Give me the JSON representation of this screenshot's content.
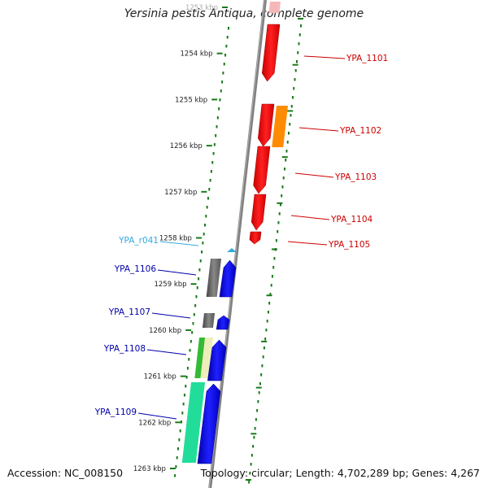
{
  "title": "Yersinia pestis Antiqua, complete genome",
  "footer": {
    "accession": "Accession: NC_008150",
    "topology": "Topology: circular; Length: 4,702,289 bp; Genes: 4,267"
  },
  "scale": {
    "ticks": [
      "1253 kbp",
      "1254 kbp",
      "1255 kbp",
      "1256 kbp",
      "1257 kbp",
      "1258 kbp",
      "1259 kbp",
      "1260 kbp",
      "1261 kbp",
      "1262 kbp",
      "1263 kbp"
    ],
    "tick_color": "#1a7a1a",
    "axis_color": "#808080"
  },
  "genes": [
    {
      "label": "YPA_1101",
      "strand": "plus",
      "color": "#cc0000",
      "fill": "#ff1a1a"
    },
    {
      "label": "YPA_1102",
      "strand": "plus",
      "color": "#cc0000",
      "fill": "#ff1a1a"
    },
    {
      "label": "YPA_1103",
      "strand": "plus",
      "color": "#cc0000",
      "fill": "#ff1a1a"
    },
    {
      "label": "YPA_1104",
      "strand": "plus",
      "color": "#cc0000",
      "fill": "#ff1a1a"
    },
    {
      "label": "YPA_1105",
      "strand": "plus",
      "color": "#cc0000",
      "fill": "#ff1a1a"
    },
    {
      "label": "YPA_r041",
      "strand": "minus",
      "color": "#33aadd",
      "fill": "#33aadd"
    },
    {
      "label": "YPA_1106",
      "strand": "minus",
      "color": "#0000aa",
      "fill": "#1414e0"
    },
    {
      "label": "YPA_1107",
      "strand": "minus",
      "color": "#0000aa",
      "fill": "#1414e0"
    },
    {
      "label": "YPA_1108",
      "strand": "minus",
      "color": "#0000aa",
      "fill": "#1414e0"
    },
    {
      "label": "YPA_1109",
      "strand": "minus",
      "color": "#0000aa",
      "fill": "#1414e0"
    }
  ],
  "colors": {
    "cog_orange": "#ff8c00",
    "cog_gray": "#666666",
    "cog_green": "#33bb33",
    "cog_teal": "#22dd99",
    "cog_khaki": "#eeeebb"
  }
}
